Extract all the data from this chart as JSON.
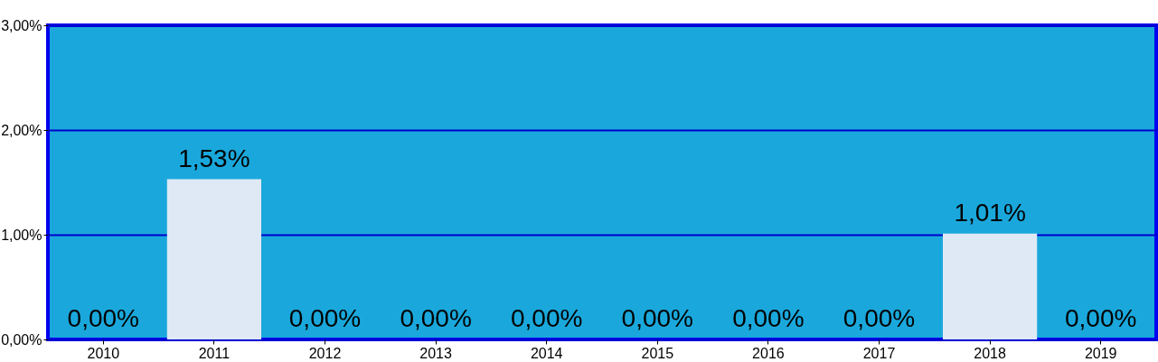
{
  "chart_data": {
    "type": "bar",
    "categories": [
      "2010",
      "2011",
      "2012",
      "2013",
      "2014",
      "2015",
      "2016",
      "2017",
      "2018",
      "2019"
    ],
    "values": [
      0,
      1.53,
      0,
      0,
      0,
      0,
      0,
      0,
      1.01,
      0
    ],
    "value_labels": [
      "0,00%",
      "1,53%",
      "0,00%",
      "0,00%",
      "0,00%",
      "0,00%",
      "0,00%",
      "0,00%",
      "1,01%",
      "0,00%"
    ],
    "color": "#dfe9f5",
    "ylim": [
      0,
      3
    ],
    "yticks": [
      {
        "value": 0,
        "label": "0,00%"
      },
      {
        "value": 1,
        "label": "1,00%"
      },
      {
        "value": 2,
        "label": "2,00%"
      },
      {
        "value": 3,
        "label": "3,00%"
      }
    ],
    "grid": "y"
  }
}
